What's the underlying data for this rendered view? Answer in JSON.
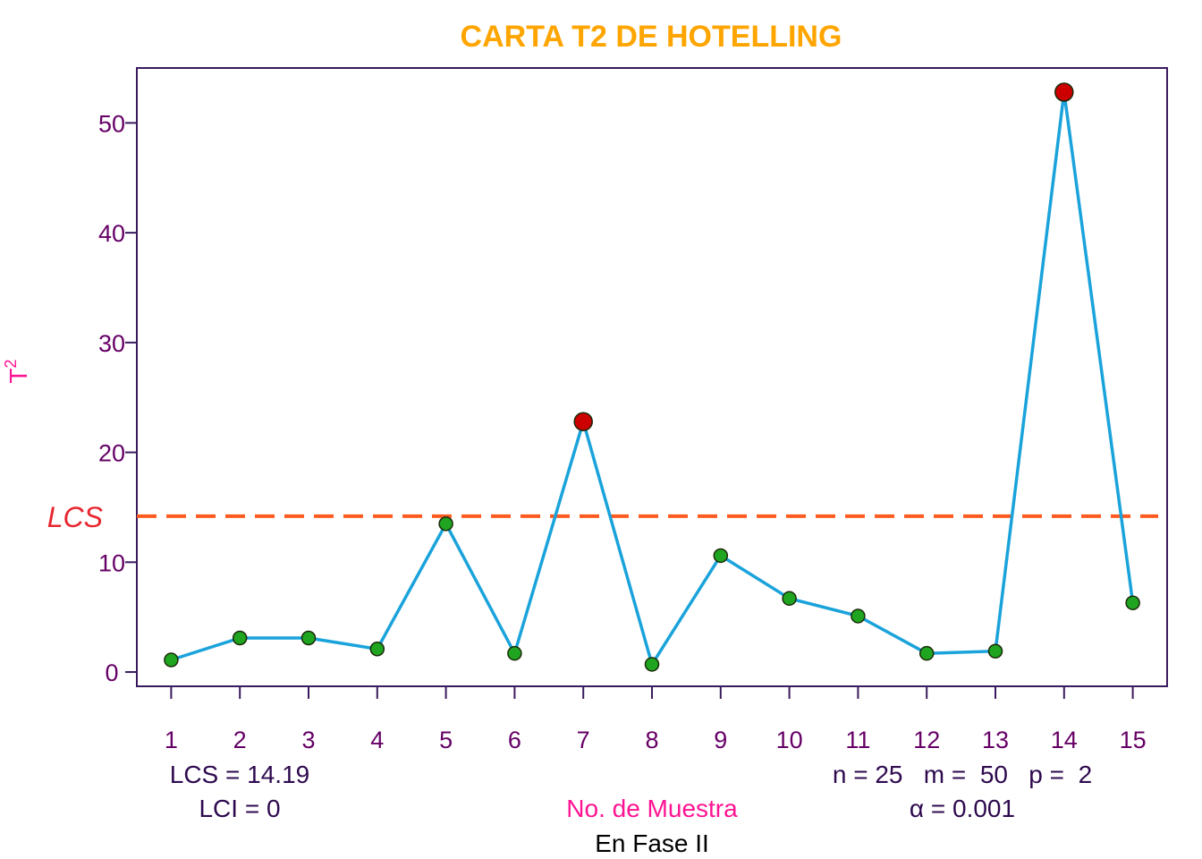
{
  "colors": {
    "title": "#FFA500",
    "axis_text": "#660066",
    "axis_label": "#FF1493",
    "frame": "#3A1A5E",
    "line": "#1AA3DB",
    "point_in": "#1FA51F",
    "point_out": "#CC0000",
    "lcs_line": "#FF5A1F",
    "lcs_label": "#E8262F",
    "info_text": "#2E0A4F",
    "bottom_text": "#000000"
  },
  "chart_data": {
    "type": "line",
    "title": "CARTA T2 DE HOTELLING",
    "xlabel": "No. de Muestra",
    "ylabel": "T",
    "ylabel_superscript": "2",
    "x": [
      1,
      2,
      3,
      4,
      5,
      6,
      7,
      8,
      9,
      10,
      11,
      12,
      13,
      14,
      15
    ],
    "x_ticks": [
      "1",
      "2",
      "3",
      "4",
      "5",
      "6",
      "7",
      "8",
      "9",
      "10",
      "11",
      "12",
      "13",
      "14",
      "15"
    ],
    "y_ticks": [
      "0",
      "10",
      "20",
      "30",
      "40",
      "50"
    ],
    "series": [
      {
        "values": [
          1.1,
          3.1,
          3.1,
          2.1,
          13.5,
          1.7,
          22.8,
          0.7,
          10.6,
          6.7,
          5.1,
          1.7,
          1.9,
          52.8,
          6.3
        ],
        "out_of_control": [
          false,
          false,
          false,
          false,
          false,
          false,
          true,
          false,
          false,
          false,
          false,
          false,
          false,
          true,
          false
        ]
      }
    ],
    "xlim": [
      0.5,
      15.5
    ],
    "ylim": [
      -1.3,
      55
    ],
    "control_limit": {
      "name": "LCS",
      "value": 14.19
    },
    "grid": false
  },
  "annotations": {
    "lcs": "LCS = 14.19",
    "lci": "LCI = 0",
    "params": "n = 25   m =  50   p =  2",
    "alpha": "α = 0.001",
    "phase": "En Fase II"
  }
}
